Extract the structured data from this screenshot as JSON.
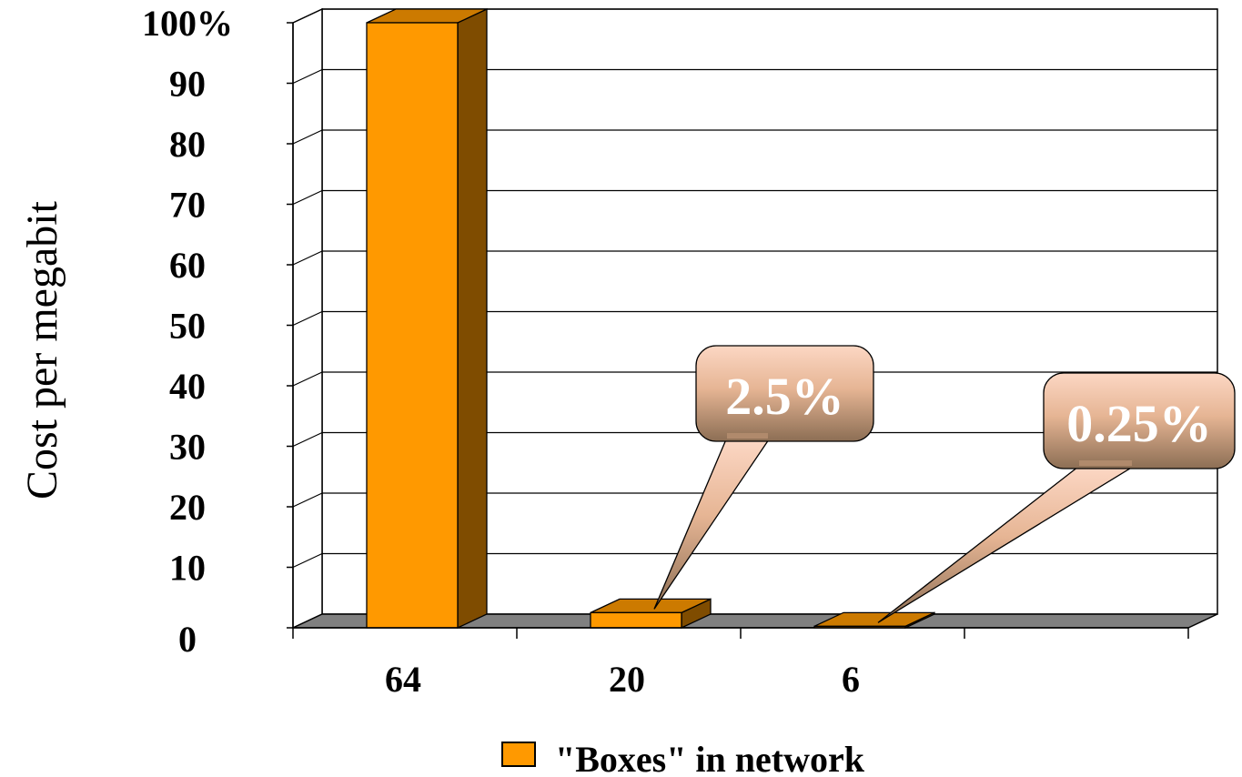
{
  "chart_data": {
    "type": "bar",
    "categories": [
      "64",
      "20",
      "6"
    ],
    "series": [
      {
        "name": "\"Boxes\" in network",
        "values": [
          100,
          2.5,
          0.25
        ]
      }
    ],
    "ylabel": "Cost per megabit",
    "xlabel": "",
    "ylim": [
      0,
      100
    ],
    "yticks": [
      "0",
      "10",
      "20",
      "30",
      "40",
      "50",
      "60",
      "70",
      "80",
      "90",
      "100%"
    ],
    "grid": true,
    "legend": "bottom",
    "annotations": [
      "2.5%",
      "0.25%"
    ],
    "colors": {
      "bar_front": "#ff9900",
      "bar_side": "#7f4c00",
      "bar_top": "#cc7a00",
      "floor": "#808080",
      "callout_top": "#fcd7c4",
      "callout_bottom": "#8c6e54"
    }
  }
}
